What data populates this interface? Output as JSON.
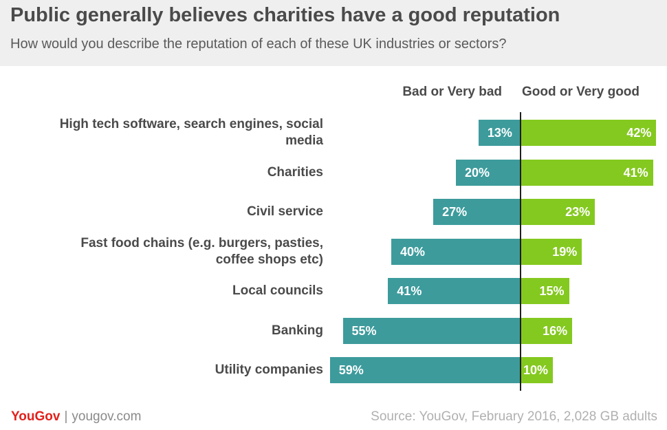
{
  "header": {
    "title": "Public generally believes charities have a good reputation",
    "subtitle": "How would you describe the reputation of each of these UK industries or sectors?"
  },
  "chart_data": {
    "type": "bar",
    "orientation": "horizontal-diverging",
    "categories": [
      "High tech software, search engines, social media",
      "Charities",
      "Civil service",
      "Fast food chains (e.g. burgers, pasties, coffee shops etc)",
      "Local councils",
      "Banking",
      "Utility companies"
    ],
    "category_lines": [
      [
        "High tech software, search engines, social",
        "media"
      ],
      [
        "Charities"
      ],
      [
        "Civil service"
      ],
      [
        "Fast food chains (e.g. burgers, pasties,",
        "coffee shops etc)"
      ],
      [
        "Local councils"
      ],
      [
        "Banking"
      ],
      [
        "Utility companies"
      ]
    ],
    "series": [
      {
        "name": "Bad or Very bad",
        "values": [
          13,
          20,
          27,
          40,
          41,
          55,
          59
        ],
        "color": "#3d9b9c",
        "direction": "left"
      },
      {
        "name": "Good or Very good",
        "values": [
          42,
          41,
          23,
          19,
          15,
          16,
          10
        ],
        "color": "#84c91f",
        "direction": "right"
      }
    ],
    "value_suffix": "%",
    "grid": false,
    "legend": "top"
  },
  "footer": {
    "brand_you": "You",
    "brand_gov": "Gov",
    "separator": "|",
    "url": "yougov.com",
    "source": "Source: YouGov, February 2016, 2,028 GB adults"
  }
}
